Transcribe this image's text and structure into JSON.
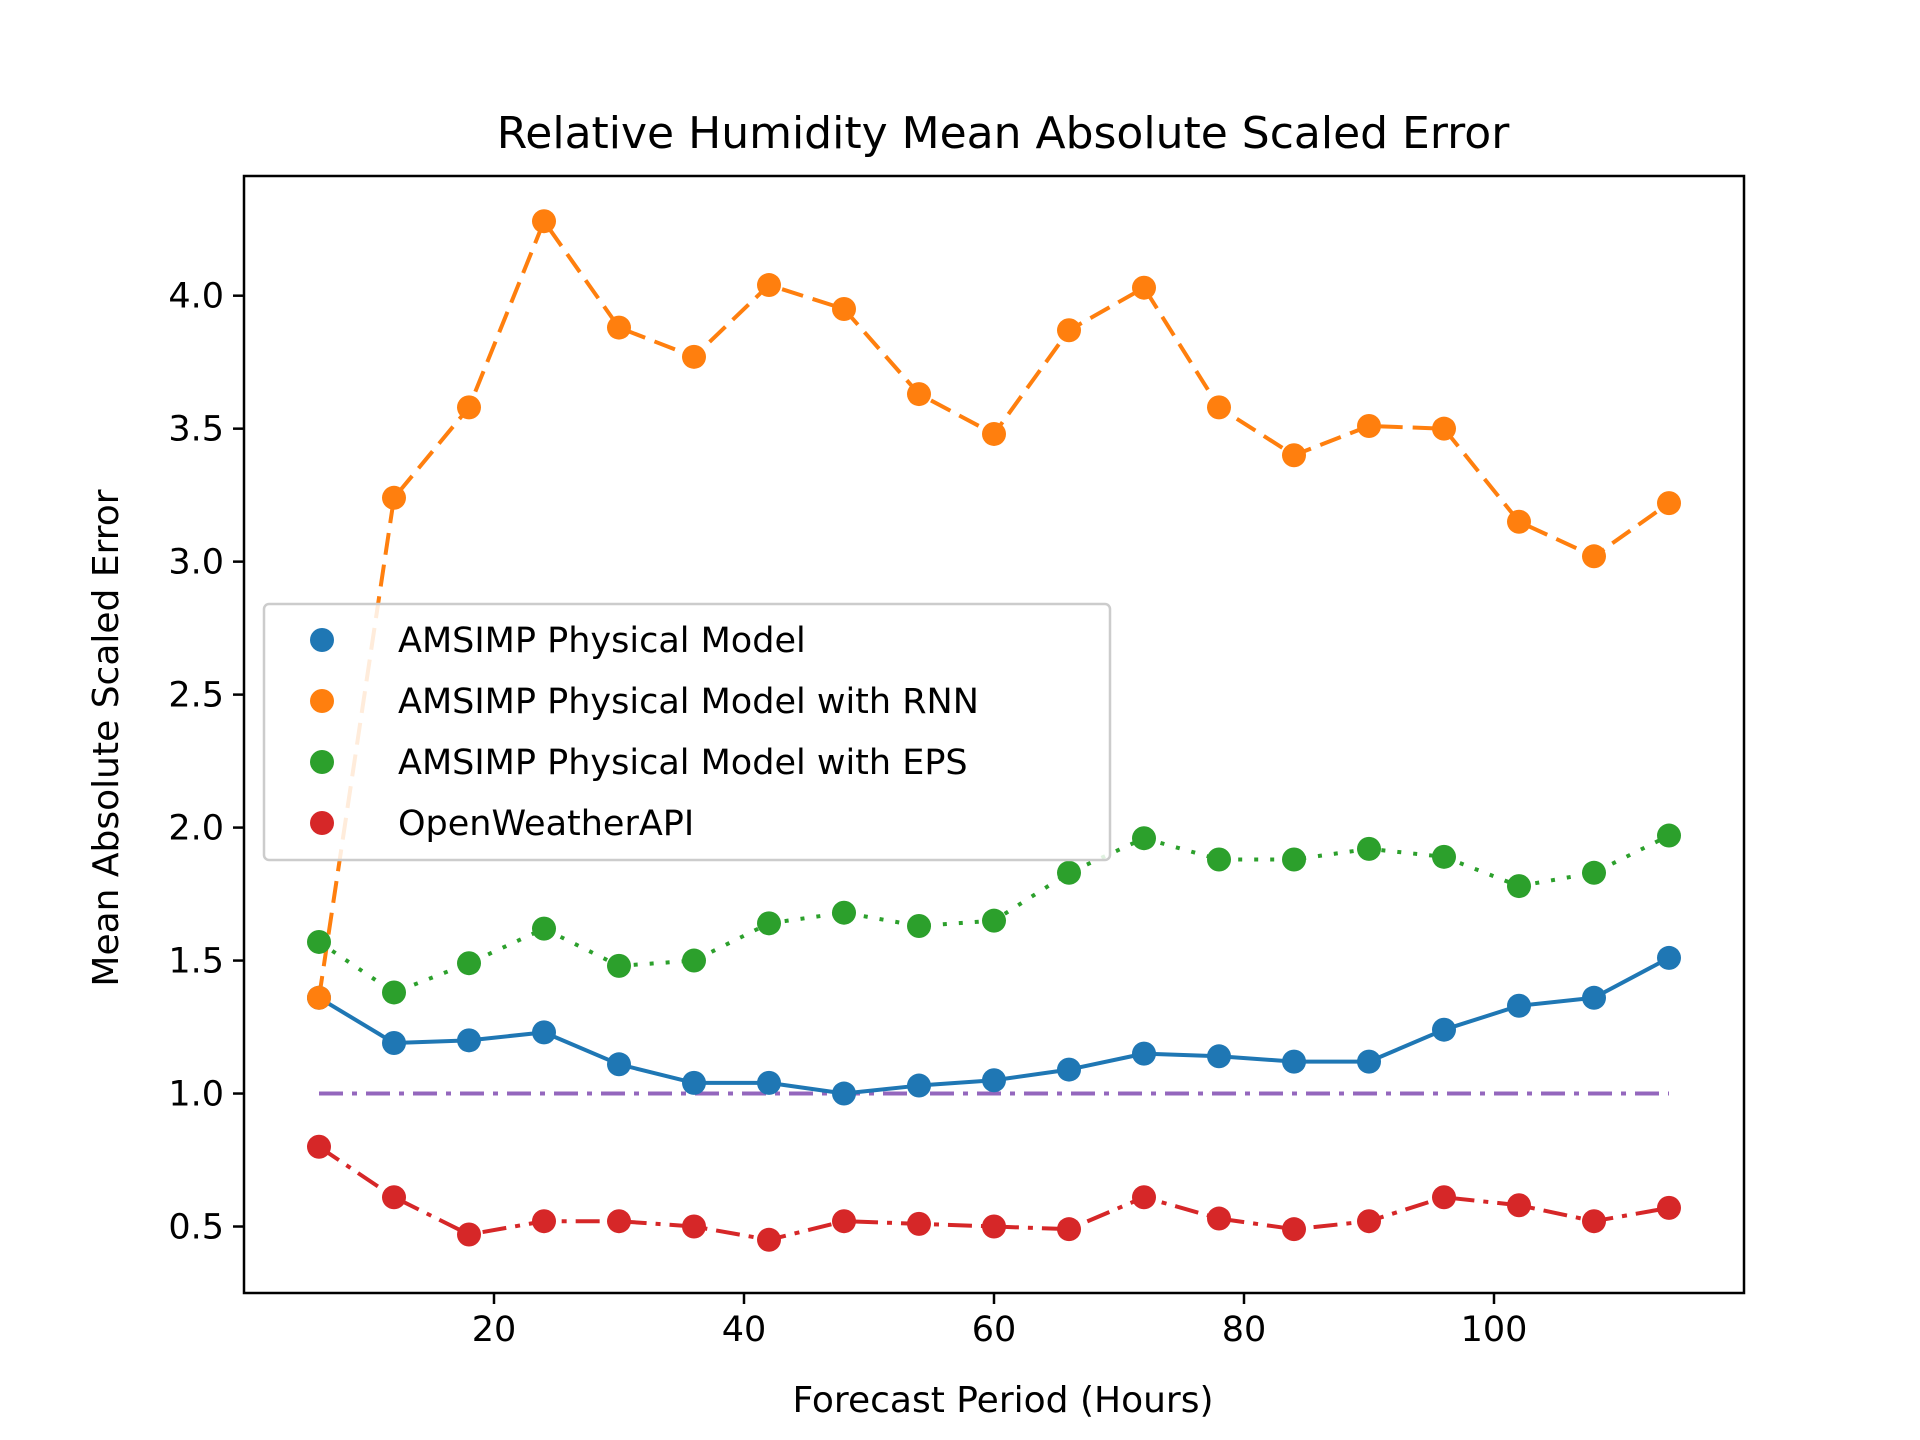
{
  "chart_data": {
    "type": "line",
    "title": "Relative Humidity Mean Absolute Scaled Error",
    "xlabel": "Forecast Period (Hours)",
    "ylabel": "Mean Absolute Scaled Error",
    "xlim": [
      0,
      120
    ],
    "ylim": [
      0.25,
      4.45
    ],
    "xticks": [
      20,
      40,
      60,
      80,
      100
    ],
    "yticks": [
      0.5,
      1.0,
      1.5,
      2.0,
      2.5,
      3.0,
      3.5,
      4.0
    ],
    "x": [
      6,
      12,
      18,
      24,
      30,
      36,
      42,
      48,
      54,
      60,
      66,
      72,
      78,
      84,
      90,
      96,
      102,
      108,
      114
    ],
    "series": [
      {
        "name": "AMSIMP Physical Model",
        "color": "#1f77b4",
        "style": "solid",
        "values": [
          1.36,
          1.19,
          1.2,
          1.23,
          1.11,
          1.04,
          1.04,
          1.0,
          1.03,
          1.05,
          1.09,
          1.15,
          1.14,
          1.12,
          1.12,
          1.24,
          1.33,
          1.36,
          1.51
        ]
      },
      {
        "name": "AMSIMP Physical Model with RNN",
        "color": "#ff7f0e",
        "style": "dashed",
        "values": [
          1.36,
          3.24,
          3.58,
          4.28,
          3.88,
          3.77,
          4.04,
          3.95,
          3.63,
          3.48,
          3.87,
          4.03,
          3.58,
          3.4,
          3.51,
          3.5,
          3.15,
          3.02,
          3.22
        ]
      },
      {
        "name": "AMSIMP Physical Model with EPS",
        "color": "#2ca02c",
        "style": "dotted",
        "values": [
          1.57,
          1.38,
          1.49,
          1.62,
          1.48,
          1.5,
          1.64,
          1.68,
          1.63,
          1.65,
          1.83,
          1.96,
          1.88,
          1.88,
          1.92,
          1.89,
          1.78,
          1.83,
          1.97
        ]
      },
      {
        "name": "OpenWeatherAPI",
        "color": "#d62728",
        "style": "dashdot",
        "values": [
          0.8,
          0.61,
          0.47,
          0.52,
          0.52,
          0.5,
          0.45,
          0.52,
          0.51,
          0.5,
          0.49,
          0.61,
          0.53,
          0.49,
          0.52,
          0.61,
          0.58,
          0.52,
          0.57
        ]
      }
    ],
    "reference_line": {
      "y": 1.0,
      "x": [
        6,
        114
      ],
      "color": "#9467bd",
      "style": "dashdot"
    },
    "legend": {
      "placement": "center-left"
    },
    "grid": false
  }
}
